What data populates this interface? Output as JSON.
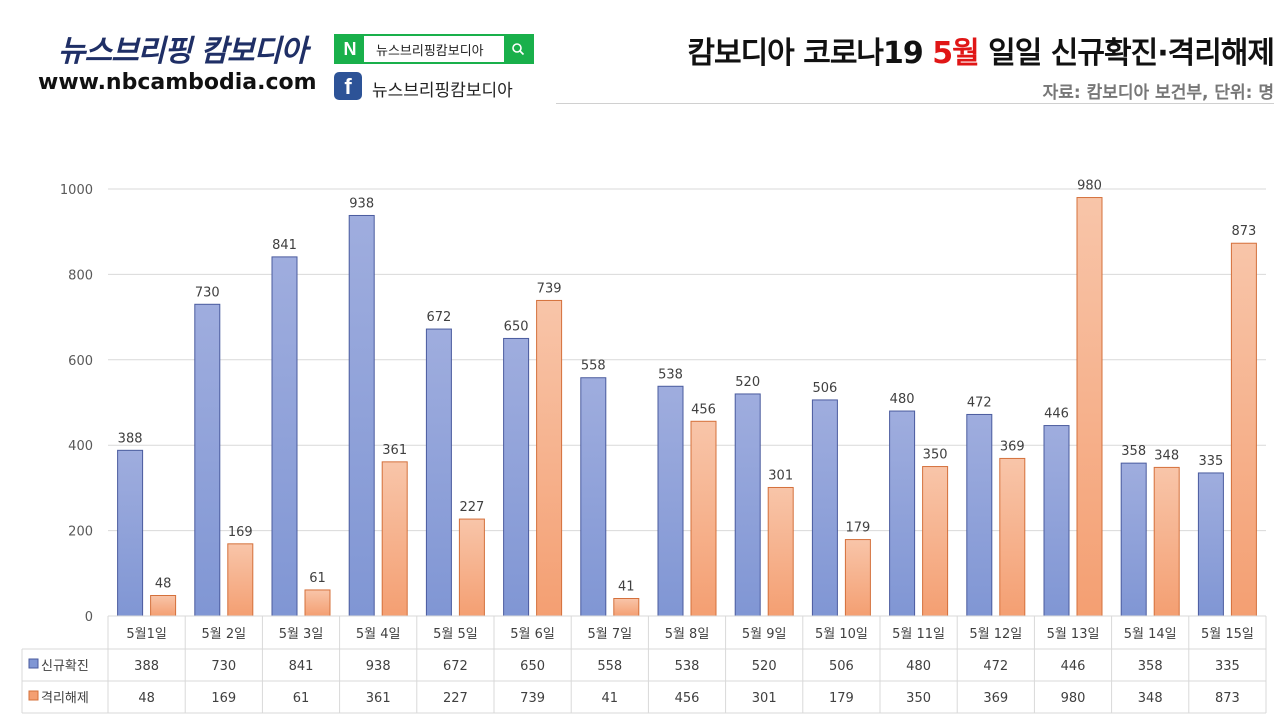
{
  "header": {
    "logo_title": "뉴스브리핑 캄보디아",
    "logo_url": "www.nbcambodia.com",
    "naver_n": "N",
    "naver_search_text": "뉴스브리핑캄보디아",
    "facebook_text": "뉴스브리핑캄보디아",
    "title_part1": "캄보디아 코로나19 ",
    "title_highlight": "5월",
    "title_part2": " 일일 신규확진·격리해제",
    "subtitle": "자료: 캄보디아 보건부, 단위: 명"
  },
  "colors": {
    "series1_top": "#9fadde",
    "series1_bottom": "#8096d4",
    "series1_border": "#4a5b9e",
    "series2_top": "#f8c5a9",
    "series2_bottom": "#f49f72",
    "series2_border": "#d4703b",
    "grid": "#d9d9d9",
    "brand_green": "#19b04b",
    "facebook_blue": "#2d5397",
    "highlight_red": "#e01616"
  },
  "chart_data": {
    "type": "bar",
    "categories": [
      "5월1일",
      "5월 2일",
      "5월 3일",
      "5월 4일",
      "5월 5일",
      "5월 6일",
      "5월 7일",
      "5월 8일",
      "5월 9일",
      "5월 10일",
      "5월 11일",
      "5월 12일",
      "5월 13일",
      "5월 14일",
      "5월 15일"
    ],
    "series": [
      {
        "name": "신규확진",
        "values": [
          388,
          730,
          841,
          938,
          672,
          650,
          558,
          538,
          520,
          506,
          480,
          472,
          446,
          358,
          335
        ]
      },
      {
        "name": "격리해제",
        "values": [
          48,
          169,
          61,
          361,
          227,
          739,
          41,
          456,
          301,
          179,
          350,
          369,
          980,
          348,
          873
        ]
      }
    ],
    "ylim": [
      0,
      1000
    ],
    "yticks": [
      0,
      200,
      400,
      600,
      800,
      1000
    ],
    "grid": true,
    "legend": "data-table-bottom",
    "data_labels": true
  }
}
